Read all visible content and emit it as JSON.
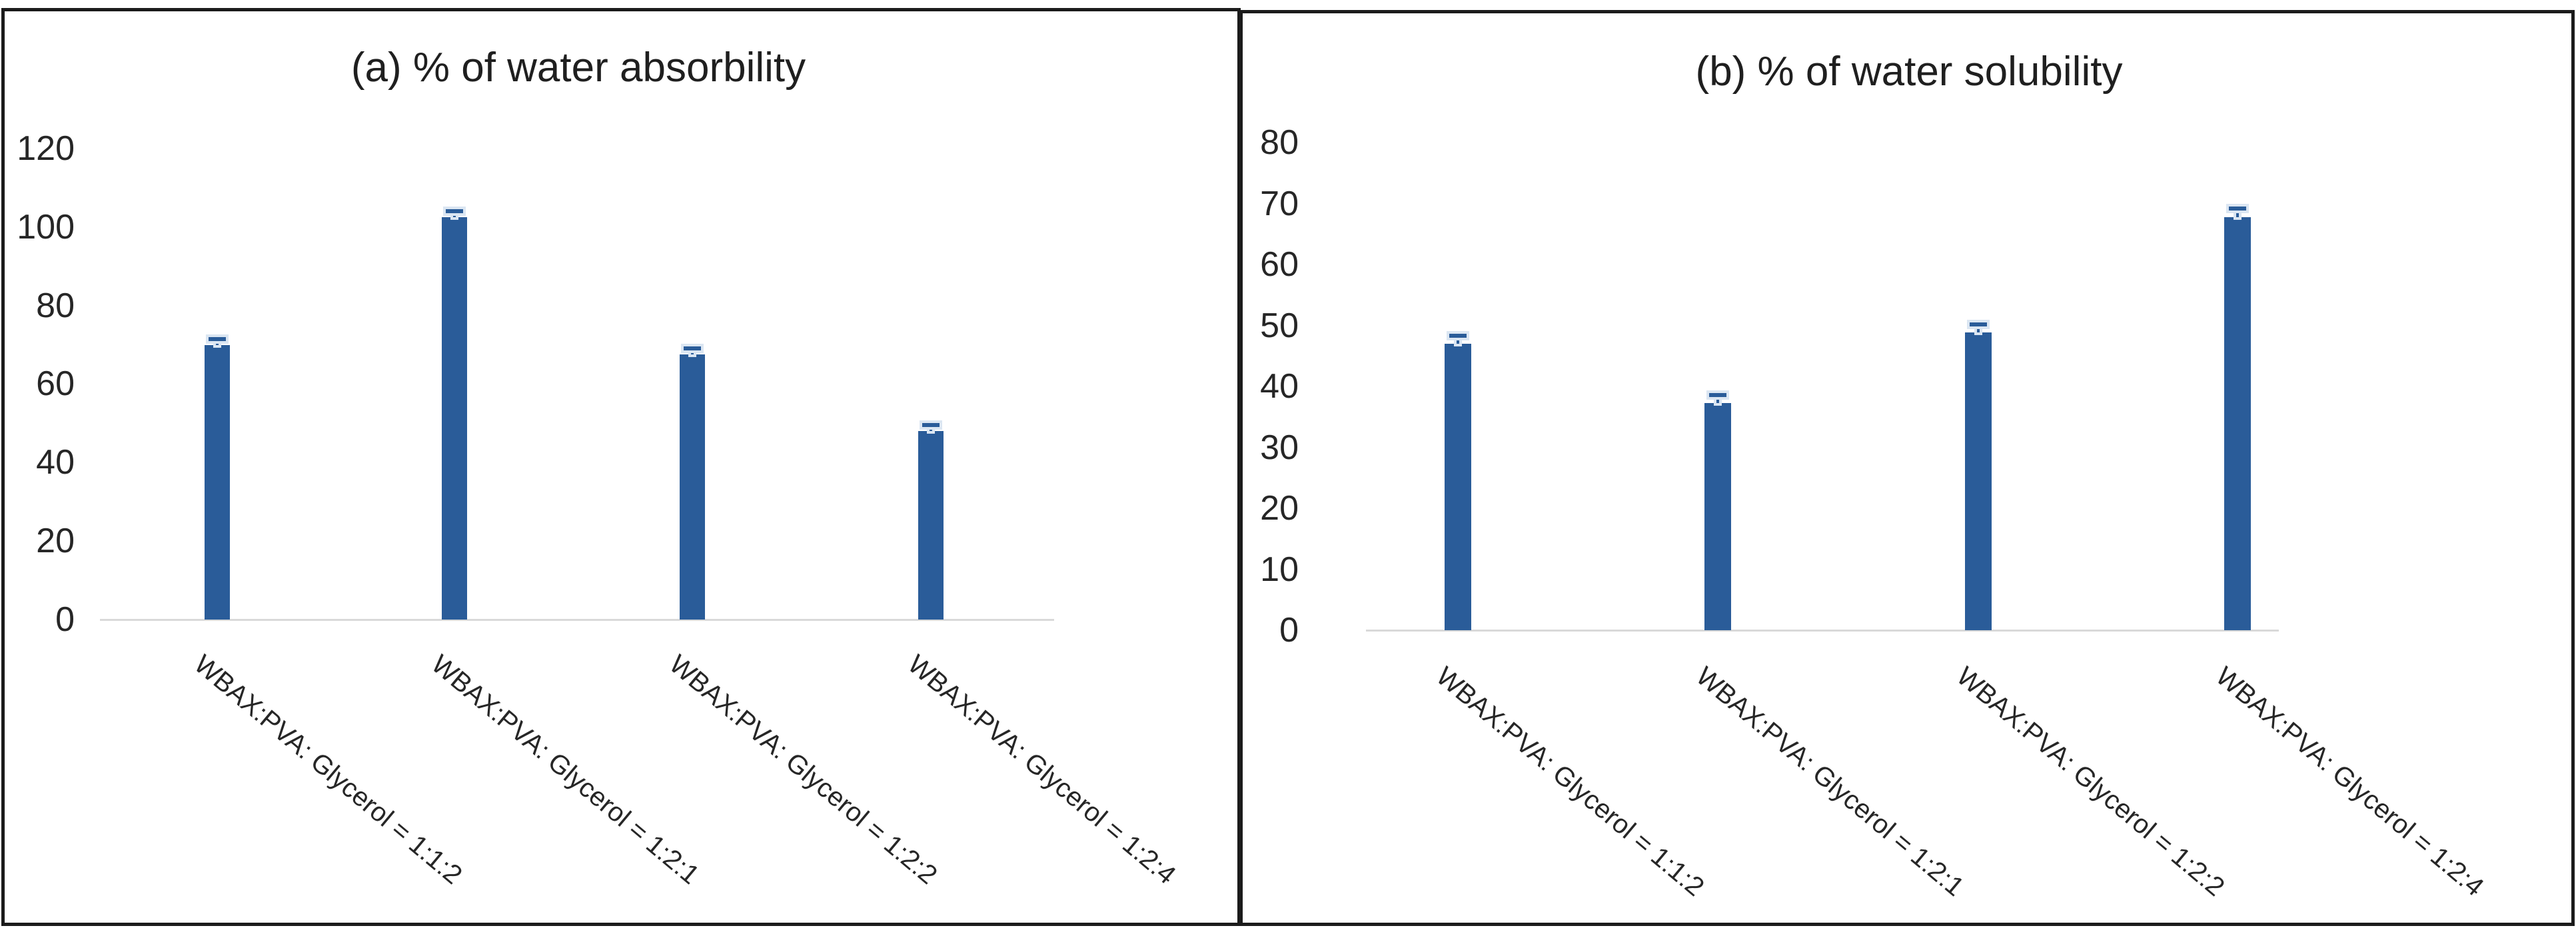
{
  "figure": {
    "background": "#ffffff",
    "panel_border_color": "#1b1b1b",
    "bar_color": "#2a5c99",
    "error_bar_color": "#2a5c99",
    "error_halo_color": "#dbe6f2",
    "axis_line_color": "#d9d9d9",
    "tick_text_color": "#262626",
    "title_text_color": "#1f1f1f"
  },
  "chart_data": [
    {
      "type": "bar",
      "panel": "a",
      "title": "(a) % of water absorbility",
      "categories": [
        "WBAX:PVA: Glycerol = 1:1:2",
        "WBAX:PVA: Glycerol = 1:2:1",
        "WBAX:PVA: Glycerol = 1:2:2",
        "WBAX:PVA: Glycerol = 1:2:4"
      ],
      "values": [
        70,
        102.5,
        67.5,
        48
      ],
      "errors": [
        1.5,
        1.5,
        1.5,
        1.5
      ],
      "ylabel": "",
      "xlabel": "",
      "ylim": [
        0,
        120
      ],
      "yticks": [
        0,
        20,
        40,
        60,
        80,
        100,
        120
      ],
      "grid": false,
      "legend_position": "none"
    },
    {
      "type": "bar",
      "panel": "b",
      "title": "(b) % of water solubility",
      "categories": [
        "WBAX:PVA: Glycerol = 1:1:2",
        "WBAX:PVA: Glycerol = 1:2:1",
        "WBAX:PVA: Glycerol = 1:2:2",
        "WBAX:PVA: Glycerol = 1:2:4"
      ],
      "values": [
        47,
        37.3,
        48.8,
        67.8
      ],
      "errors": [
        1.3,
        1.3,
        1.4,
        1.4
      ],
      "ylabel": "",
      "xlabel": "",
      "ylim": [
        0,
        80
      ],
      "yticks": [
        0,
        10,
        20,
        30,
        40,
        50,
        60,
        70,
        80
      ],
      "grid": false,
      "legend_position": "none"
    }
  ]
}
